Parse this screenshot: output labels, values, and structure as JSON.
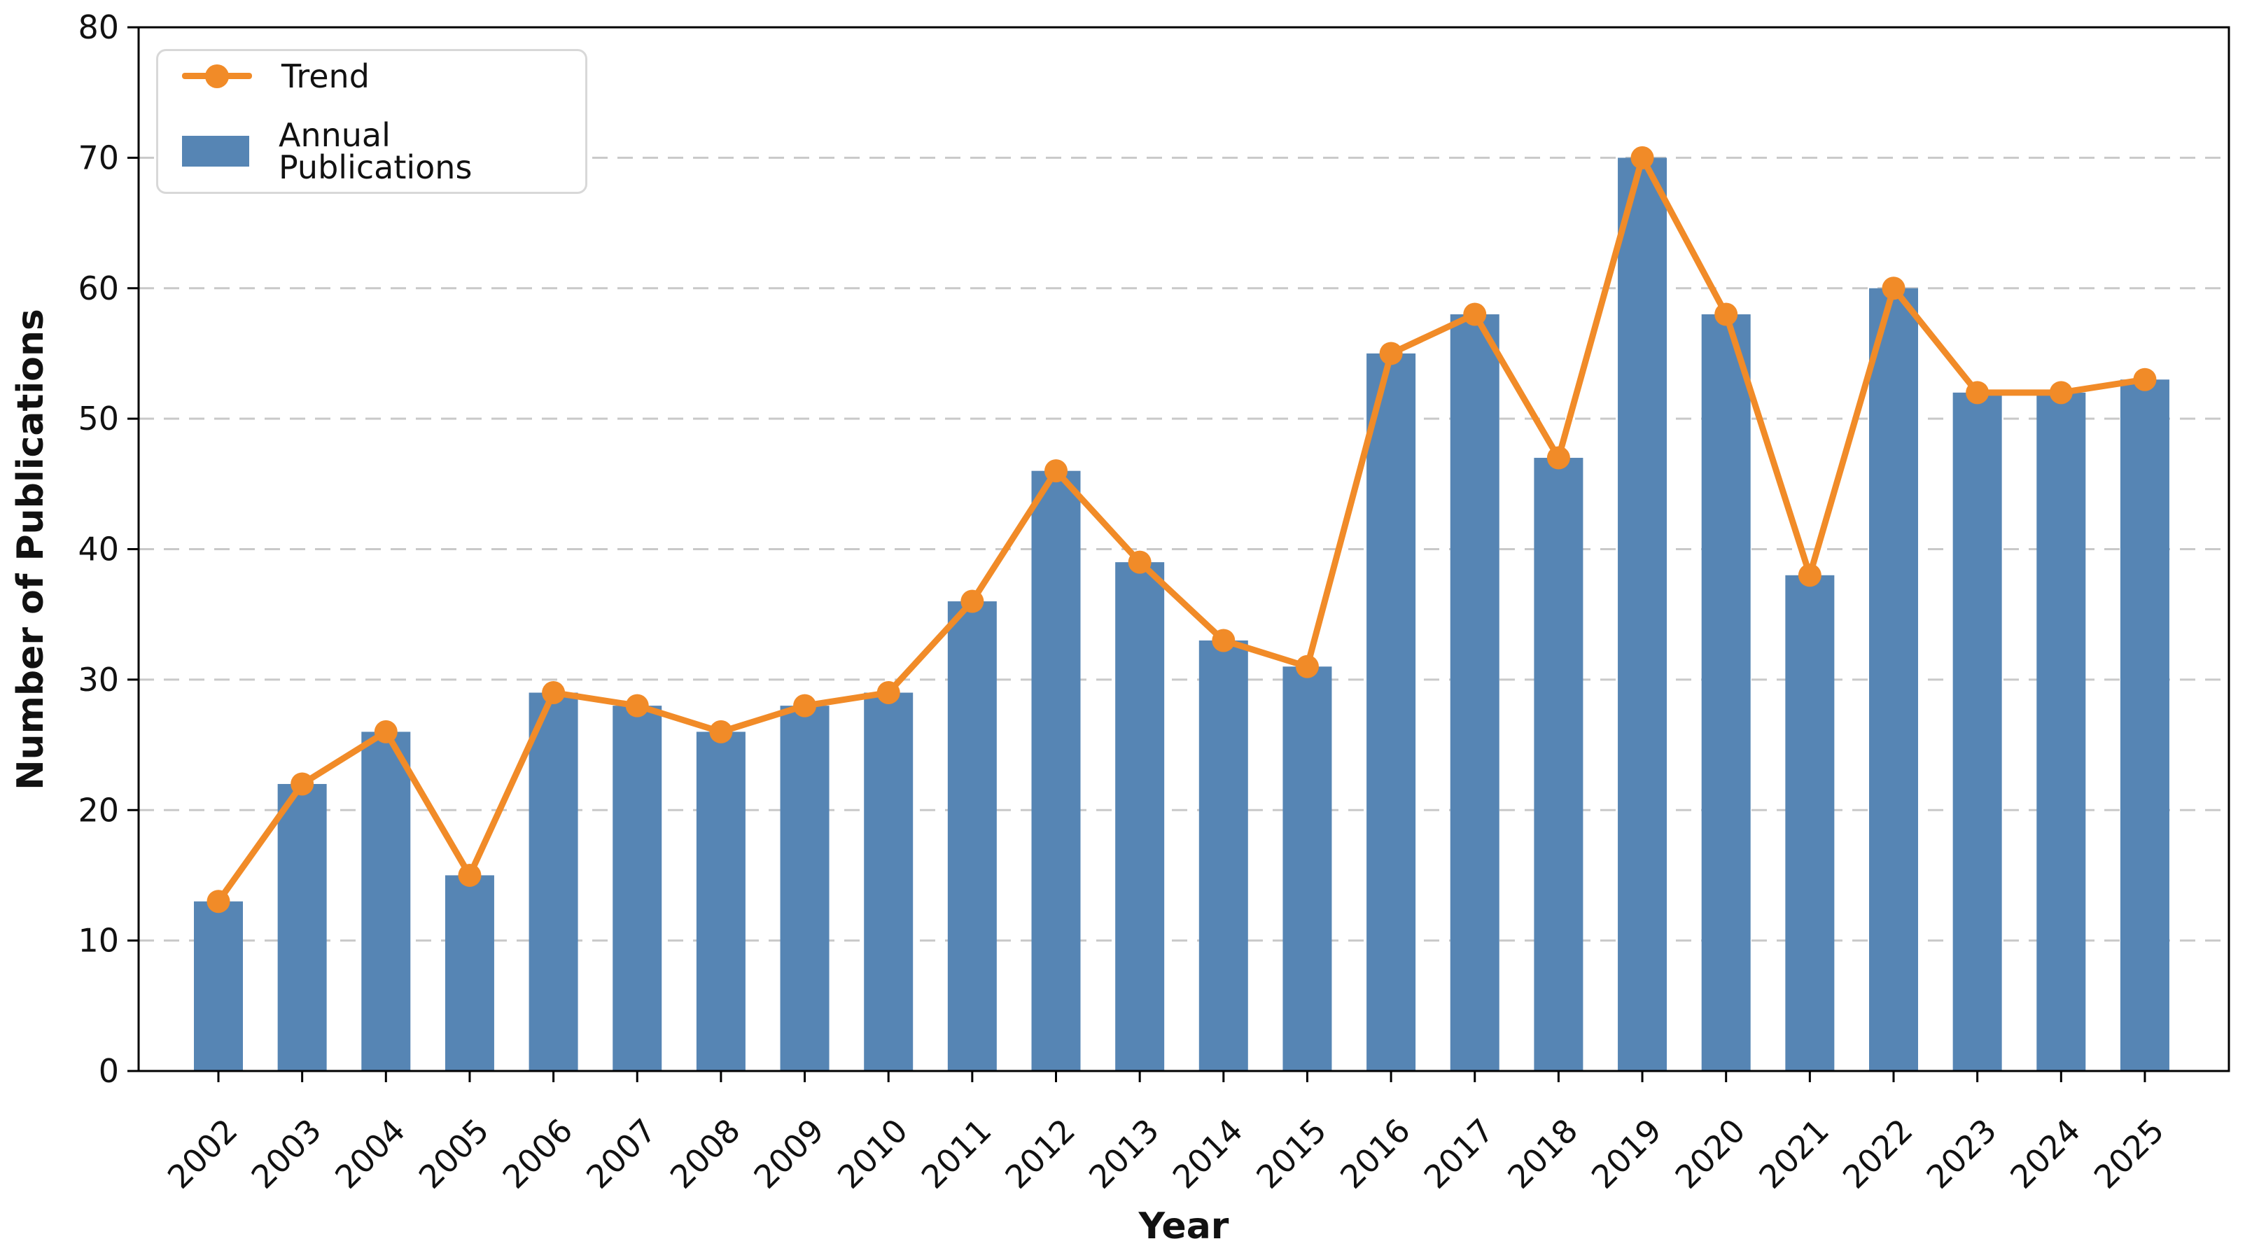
{
  "figure": {
    "background": "#ffffff",
    "xlabel": "Year",
    "ylabel": "Number of Publications"
  },
  "legend": {
    "trend_label": "Trend",
    "bars_label": "Annual Publications",
    "border_color": "#d8d8d8"
  },
  "colors": {
    "bar": "#5685B4",
    "line": "#F18B28",
    "grid": "#c9c9c9",
    "spine": "#000000",
    "text": "#111111"
  },
  "chart_data": {
    "type": "bar",
    "title": "",
    "xlabel": "Year",
    "ylabel": "Number of Publications",
    "categories": [
      "2002",
      "2003",
      "2004",
      "2005",
      "2006",
      "2007",
      "2008",
      "2009",
      "2010",
      "2011",
      "2012",
      "2013",
      "2014",
      "2015",
      "2016",
      "2017",
      "2018",
      "2019",
      "2020",
      "2021",
      "2022",
      "2023",
      "2024",
      "2025"
    ],
    "series": [
      {
        "name": "Annual Publications",
        "type": "bar",
        "color": "#5685B4",
        "values": [
          13,
          22,
          26,
          15,
          29,
          28,
          26,
          28,
          29,
          36,
          46,
          39,
          33,
          31,
          55,
          58,
          47,
          70,
          58,
          38,
          60,
          52,
          52,
          53
        ]
      },
      {
        "name": "Trend",
        "type": "line",
        "color": "#F18B28",
        "values": [
          13,
          22,
          26,
          15,
          29,
          28,
          26,
          28,
          29,
          36,
          46,
          39,
          33,
          31,
          55,
          58,
          47,
          70,
          58,
          38,
          60,
          52,
          52,
          53
        ]
      }
    ],
    "ylim": [
      0,
      80
    ],
    "yticks": [
      0,
      10,
      20,
      30,
      40,
      50,
      60,
      70,
      80
    ],
    "grid": "horizontal dashed",
    "legend_position": "upper-left",
    "x_tick_rotation": 45
  }
}
